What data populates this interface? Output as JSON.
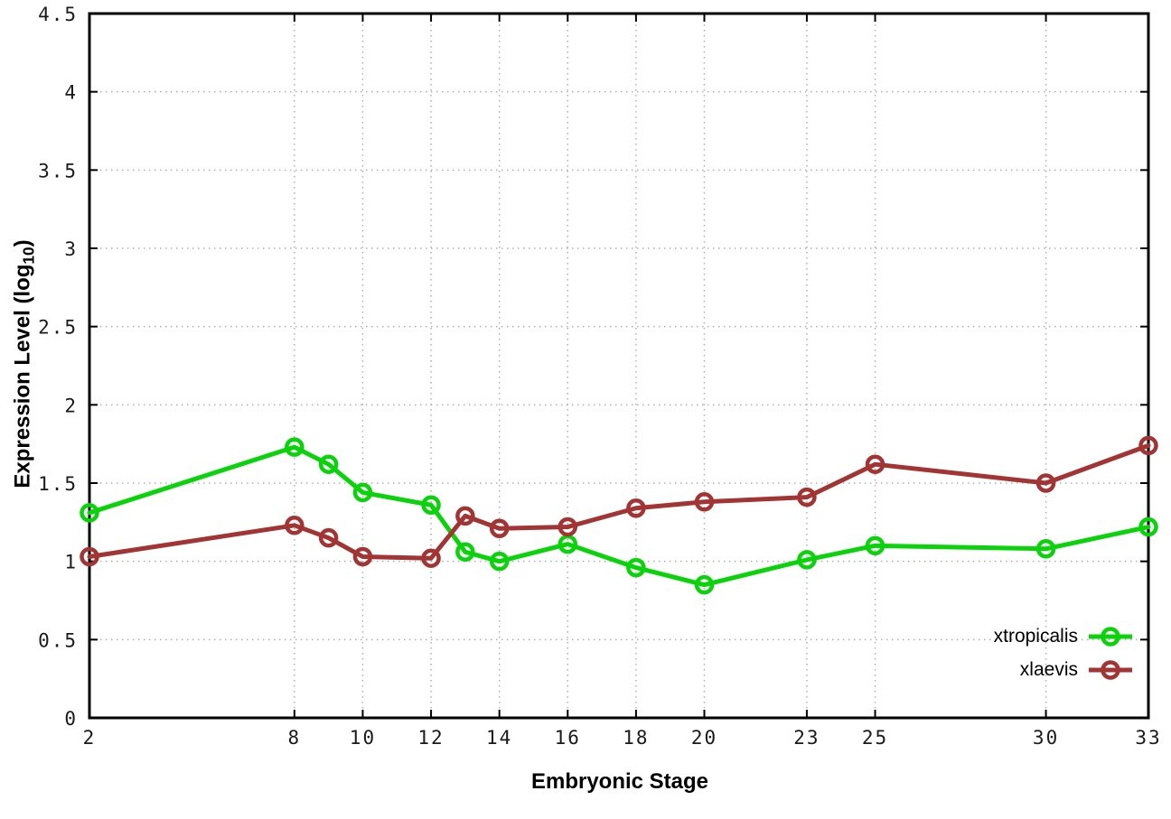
{
  "figure": {
    "background": "#ffffff",
    "border_color": "#000000",
    "grid_color": "#b0b0b0"
  },
  "chart_data": {
    "type": "line",
    "title": "",
    "xlabel": "Embryonic Stage",
    "ylabel": "Expression Level (log10)",
    "ylabel_parts": {
      "main": "Expression Level (log",
      "sub": "10",
      "end": ")"
    },
    "x": [
      2,
      8,
      9,
      10,
      12,
      13,
      14,
      16,
      18,
      20,
      23,
      25,
      30,
      33
    ],
    "xticks": [
      2,
      8,
      10,
      12,
      14,
      16,
      18,
      20,
      23,
      25,
      30,
      33
    ],
    "yticks": [
      0,
      0.5,
      1,
      1.5,
      2,
      2.5,
      3,
      3.5,
      4,
      4.5
    ],
    "xlim": [
      2,
      33
    ],
    "ylim": [
      0,
      4.5
    ],
    "grid": true,
    "legend_position": "bottom-right-inside",
    "series": [
      {
        "name": "xtropicalis",
        "color": "#0bd30b",
        "marker": "open-circle",
        "values": [
          1.31,
          1.73,
          1.62,
          1.44,
          1.36,
          1.06,
          1.0,
          1.11,
          0.96,
          0.85,
          1.01,
          1.1,
          1.08,
          1.22
        ]
      },
      {
        "name": "xlaevis",
        "color": "#a33434",
        "marker": "open-circle",
        "values": [
          1.03,
          1.23,
          1.15,
          1.03,
          1.02,
          1.29,
          1.21,
          1.22,
          1.34,
          1.38,
          1.41,
          1.62,
          1.5,
          1.74
        ]
      }
    ]
  }
}
